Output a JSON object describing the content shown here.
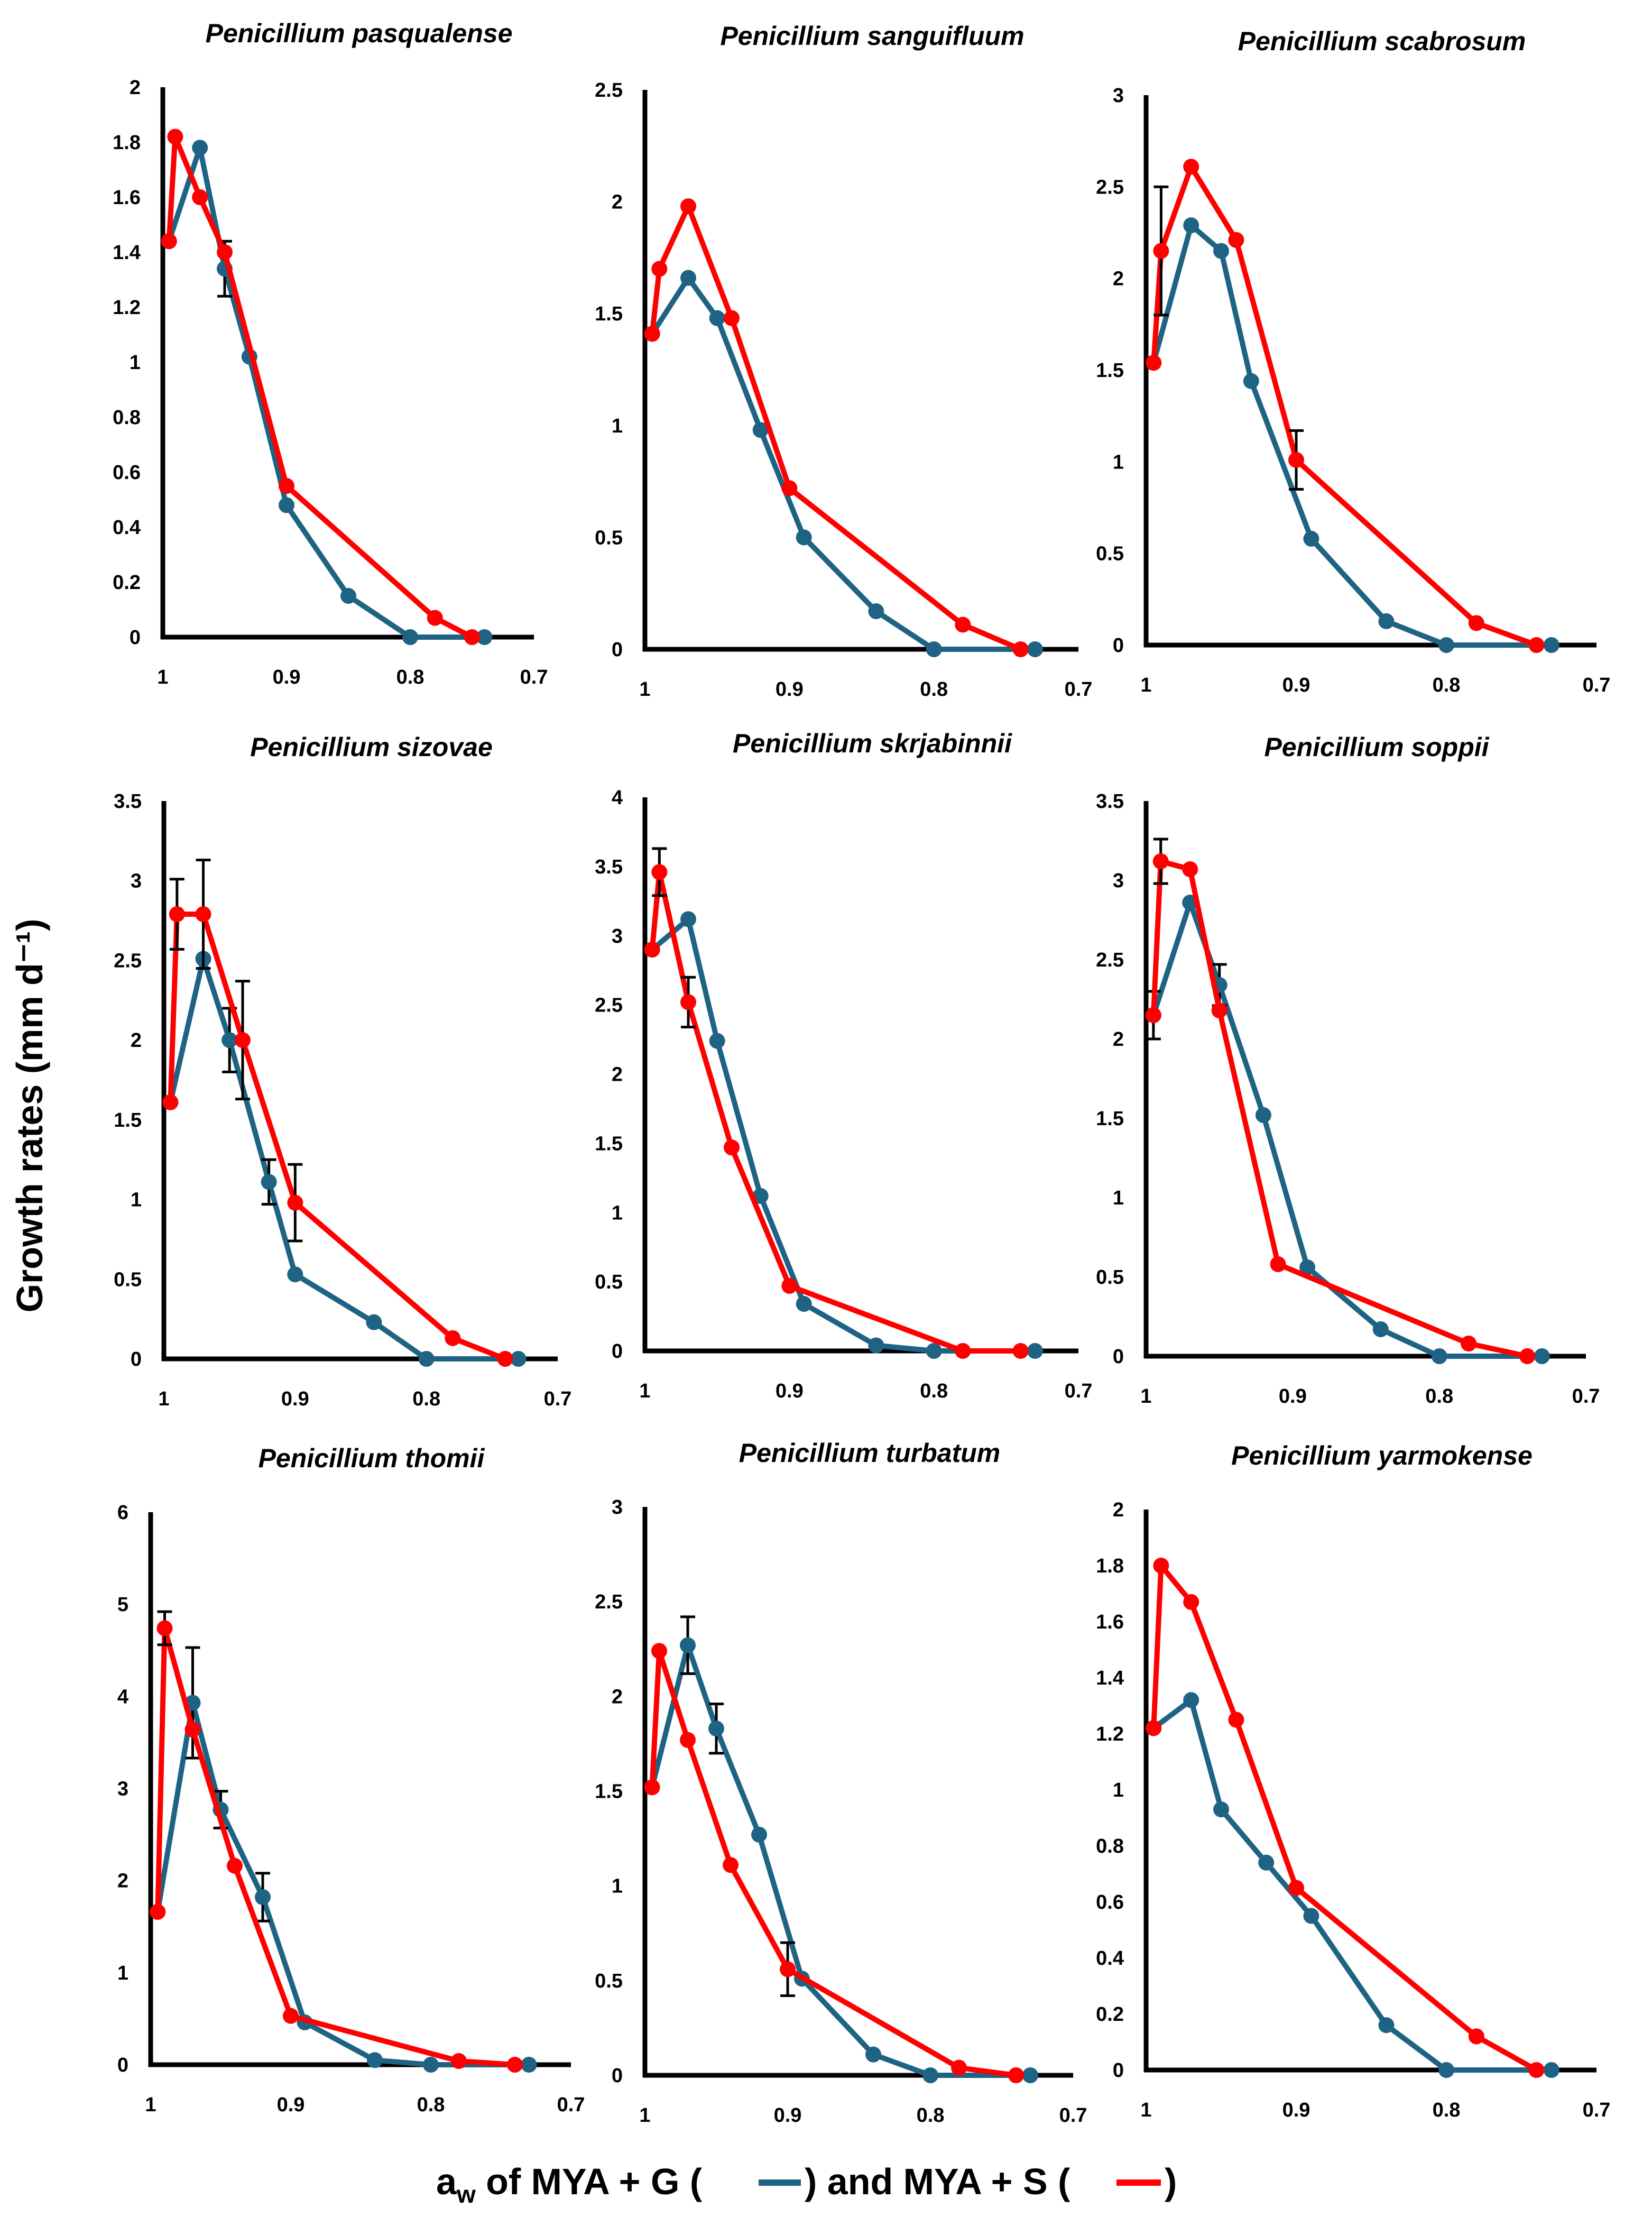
{
  "figure": {
    "ylabel": "Growth rates (mm d⁻¹)",
    "xlabel_prefix": "a",
    "xlabel_sub": "w",
    "xlabel_part1": " of MYA + G (",
    "xlabel_part2": ") and MYA + S (",
    "xlabel_part3": ")"
  },
  "colors": {
    "mya_g": "#1f6384",
    "mya_s": "#ff0000",
    "axis": "#000000"
  },
  "chart_data": [
    {
      "type": "line",
      "title": "Penicillium pasqualense",
      "xlim": [
        1.0,
        0.7
      ],
      "xticks": [
        "1",
        "0.9",
        "0.8",
        "0.7"
      ],
      "ylim": [
        0,
        2
      ],
      "yticks": [
        "0",
        "0.2",
        "0.4",
        "0.6",
        "0.8",
        "1",
        "1.2",
        "1.4",
        "1.6",
        "1.8",
        "2"
      ],
      "series": [
        {
          "name": "MYA + G",
          "x": [
            0.995,
            0.97,
            0.95,
            0.93,
            0.9,
            0.85,
            0.8,
            0.74
          ],
          "y": [
            1.44,
            1.78,
            1.34,
            1.02,
            0.48,
            0.15,
            0.0,
            0.0
          ],
          "err": [
            0,
            0,
            0.1,
            0,
            0,
            0,
            0,
            0
          ]
        },
        {
          "name": "MYA + S",
          "x": [
            0.995,
            0.99,
            0.97,
            0.95,
            0.9,
            0.78,
            0.75
          ],
          "y": [
            1.44,
            1.82,
            1.6,
            1.4,
            0.55,
            0.07,
            0.0
          ]
        }
      ]
    },
    {
      "type": "line",
      "title": "Penicillium sanguifluum",
      "xlim": [
        1.0,
        0.7
      ],
      "xticks": [
        "1",
        "0.9",
        "0.8",
        "0.7"
      ],
      "ylim": [
        0,
        2.5
      ],
      "yticks": [
        "0",
        "0.5",
        "1",
        "1.5",
        "2",
        "2.5"
      ],
      "series": [
        {
          "name": "MYA + G",
          "x": [
            0.995,
            0.97,
            0.95,
            0.92,
            0.89,
            0.84,
            0.8,
            0.73
          ],
          "y": [
            1.41,
            1.66,
            1.48,
            0.98,
            0.5,
            0.17,
            0.0,
            0.0
          ]
        },
        {
          "name": "MYA + S",
          "x": [
            0.995,
            0.99,
            0.97,
            0.94,
            0.9,
            0.78,
            0.74
          ],
          "y": [
            1.41,
            1.7,
            1.98,
            1.48,
            0.72,
            0.11,
            0.0
          ]
        }
      ]
    },
    {
      "type": "line",
      "title": "Penicillium scabrosum",
      "xlim": [
        1.0,
        0.7
      ],
      "xticks": [
        "1",
        "0.9",
        "0.8",
        "0.7"
      ],
      "ylim": [
        0,
        3
      ],
      "yticks": [
        "0",
        "0.5",
        "1",
        "1.5",
        "2",
        "2.5",
        "3"
      ],
      "series": [
        {
          "name": "MYA + G",
          "x": [
            0.995,
            0.97,
            0.95,
            0.93,
            0.89,
            0.84,
            0.8,
            0.73
          ],
          "y": [
            1.54,
            2.29,
            2.15,
            1.44,
            0.58,
            0.13,
            0.0,
            0.0
          ],
          "err": [
            0,
            0,
            0,
            0,
            0,
            0,
            0,
            0
          ]
        },
        {
          "name": "MYA + S",
          "x": [
            0.995,
            0.99,
            0.97,
            0.94,
            0.9,
            0.78,
            0.74
          ],
          "y": [
            1.54,
            2.15,
            2.61,
            2.21,
            1.01,
            0.12,
            0.0
          ],
          "err": [
            0,
            0.35,
            0,
            0,
            0.16,
            0,
            0
          ]
        }
      ]
    },
    {
      "type": "line",
      "title": "Penicillium sizovae",
      "xlim": [
        1.0,
        0.7
      ],
      "xticks": [
        "1",
        "0.9",
        "0.8",
        "0.7"
      ],
      "ylim": [
        0,
        3.5
      ],
      "yticks": [
        "0",
        "0.5",
        "1",
        "1.5",
        "2",
        "2.5",
        "3",
        "3.5"
      ],
      "series": [
        {
          "name": "MYA + G",
          "x": [
            0.995,
            0.97,
            0.95,
            0.92,
            0.9,
            0.84,
            0.8,
            0.73
          ],
          "y": [
            1.61,
            2.51,
            2.0,
            1.11,
            0.53,
            0.23,
            0.0,
            0.0
          ],
          "err": [
            0,
            0,
            0.2,
            0.14,
            0,
            0,
            0,
            0
          ]
        },
        {
          "name": "MYA + S",
          "x": [
            0.995,
            0.99,
            0.97,
            0.94,
            0.9,
            0.78,
            0.74
          ],
          "y": [
            1.61,
            2.79,
            2.79,
            2.0,
            0.98,
            0.13,
            0.0
          ],
          "err": [
            0,
            0.22,
            0.34,
            0.37,
            0.24,
            0,
            0
          ]
        }
      ]
    },
    {
      "type": "line",
      "title": "Penicillium skrjabinnii",
      "xlim": [
        1.0,
        0.7
      ],
      "xticks": [
        "1",
        "0.9",
        "0.8",
        "0.7"
      ],
      "ylim": [
        0,
        4
      ],
      "yticks": [
        "0",
        "0.5",
        "1",
        "1.5",
        "2",
        "2.5",
        "3",
        "3.5",
        "4"
      ],
      "series": [
        {
          "name": "MYA + G",
          "x": [
            0.995,
            0.97,
            0.95,
            0.92,
            0.89,
            0.84,
            0.8,
            0.73
          ],
          "y": [
            2.9,
            3.12,
            2.24,
            1.12,
            0.34,
            0.04,
            0.0,
            0.0
          ]
        },
        {
          "name": "MYA + S",
          "x": [
            0.995,
            0.99,
            0.97,
            0.94,
            0.9,
            0.78,
            0.74
          ],
          "y": [
            2.9,
            3.46,
            2.52,
            1.47,
            0.47,
            0.0,
            0.0
          ],
          "err": [
            0,
            0.17,
            0.18,
            0,
            0,
            0,
            0
          ]
        }
      ]
    },
    {
      "type": "line",
      "title": "Penicillium soppii",
      "xlim": [
        1.0,
        0.7
      ],
      "xticks": [
        "1",
        "0.9",
        "0.8",
        "0.7"
      ],
      "ylim": [
        0,
        3.5
      ],
      "yticks": [
        "0",
        "0.5",
        "1",
        "1.5",
        "2",
        "2.5",
        "3",
        "3.5"
      ],
      "series": [
        {
          "name": "MYA + G",
          "x": [
            0.995,
            0.97,
            0.95,
            0.92,
            0.89,
            0.84,
            0.8,
            0.73
          ],
          "y": [
            2.15,
            2.86,
            2.34,
            1.52,
            0.56,
            0.17,
            0.0,
            0.0
          ],
          "err": [
            0.15,
            0,
            0.13,
            0,
            0,
            0,
            0,
            0
          ]
        },
        {
          "name": "MYA + S",
          "x": [
            0.995,
            0.99,
            0.97,
            0.95,
            0.91,
            0.78,
            0.74
          ],
          "y": [
            2.15,
            3.12,
            3.07,
            2.18,
            0.58,
            0.08,
            0.0
          ],
          "err": [
            0,
            0.14,
            0,
            0,
            0,
            0,
            0
          ]
        }
      ]
    },
    {
      "type": "line",
      "title": "Penicillium thomii",
      "xlim": [
        1.0,
        0.7
      ],
      "xticks": [
        "1",
        "0.9",
        "0.8",
        "0.7"
      ],
      "ylim": [
        0,
        6
      ],
      "yticks": [
        "0",
        "1",
        "2",
        "3",
        "4",
        "5",
        "6"
      ],
      "series": [
        {
          "name": "MYA + G",
          "x": [
            0.995,
            0.97,
            0.95,
            0.92,
            0.89,
            0.84,
            0.8,
            0.73
          ],
          "y": [
            1.66,
            3.93,
            2.77,
            1.82,
            0.46,
            0.05,
            0.0,
            0.0
          ],
          "err": [
            0,
            0.6,
            0.2,
            0.26,
            0,
            0,
            0,
            0
          ]
        },
        {
          "name": "MYA + S",
          "x": [
            0.995,
            0.99,
            0.97,
            0.94,
            0.9,
            0.78,
            0.74
          ],
          "y": [
            1.66,
            4.74,
            3.64,
            2.16,
            0.53,
            0.04,
            0.0
          ],
          "err": [
            0,
            0.18,
            0,
            0,
            0,
            0,
            0
          ]
        }
      ]
    },
    {
      "type": "line",
      "title": "Penicillium turbatum",
      "xlim": [
        1.0,
        0.7
      ],
      "xticks": [
        "1",
        "0.9",
        "0.8",
        "0.7"
      ],
      "ylim": [
        0,
        3
      ],
      "yticks": [
        "0",
        "0.5",
        "1",
        "1.5",
        "2",
        "2.5",
        "3"
      ],
      "series": [
        {
          "name": "MYA + G",
          "x": [
            0.995,
            0.97,
            0.95,
            0.92,
            0.89,
            0.84,
            0.8,
            0.73
          ],
          "y": [
            1.52,
            2.27,
            1.83,
            1.27,
            0.51,
            0.11,
            0.0,
            0.0
          ],
          "err": [
            0,
            0.15,
            0.13,
            0,
            0,
            0,
            0,
            0
          ]
        },
        {
          "name": "MYA + S",
          "x": [
            0.995,
            0.99,
            0.97,
            0.94,
            0.9,
            0.78,
            0.74
          ],
          "y": [
            1.52,
            2.24,
            1.77,
            1.11,
            0.56,
            0.04,
            0.0
          ],
          "err": [
            0,
            0,
            0,
            0,
            0.14,
            0,
            0
          ]
        }
      ]
    },
    {
      "type": "line",
      "title": "Penicillium yarmokense",
      "xlim": [
        1.0,
        0.7
      ],
      "xticks": [
        "1",
        "0.9",
        "0.8",
        "0.7"
      ],
      "ylim": [
        0,
        2
      ],
      "yticks": [
        "0",
        "0.2",
        "0.4",
        "0.6",
        "0.8",
        "1",
        "1.2",
        "1.4",
        "1.6",
        "1.8",
        "2"
      ],
      "series": [
        {
          "name": "MYA + G",
          "x": [
            0.995,
            0.97,
            0.95,
            0.92,
            0.89,
            0.84,
            0.8,
            0.73
          ],
          "y": [
            1.22,
            1.32,
            0.93,
            0.74,
            0.55,
            0.16,
            0.0,
            0.0
          ]
        },
        {
          "name": "MYA + S",
          "x": [
            0.995,
            0.99,
            0.97,
            0.94,
            0.9,
            0.78,
            0.74
          ],
          "y": [
            1.22,
            1.8,
            1.67,
            1.25,
            0.65,
            0.12,
            0.0
          ]
        }
      ]
    }
  ]
}
